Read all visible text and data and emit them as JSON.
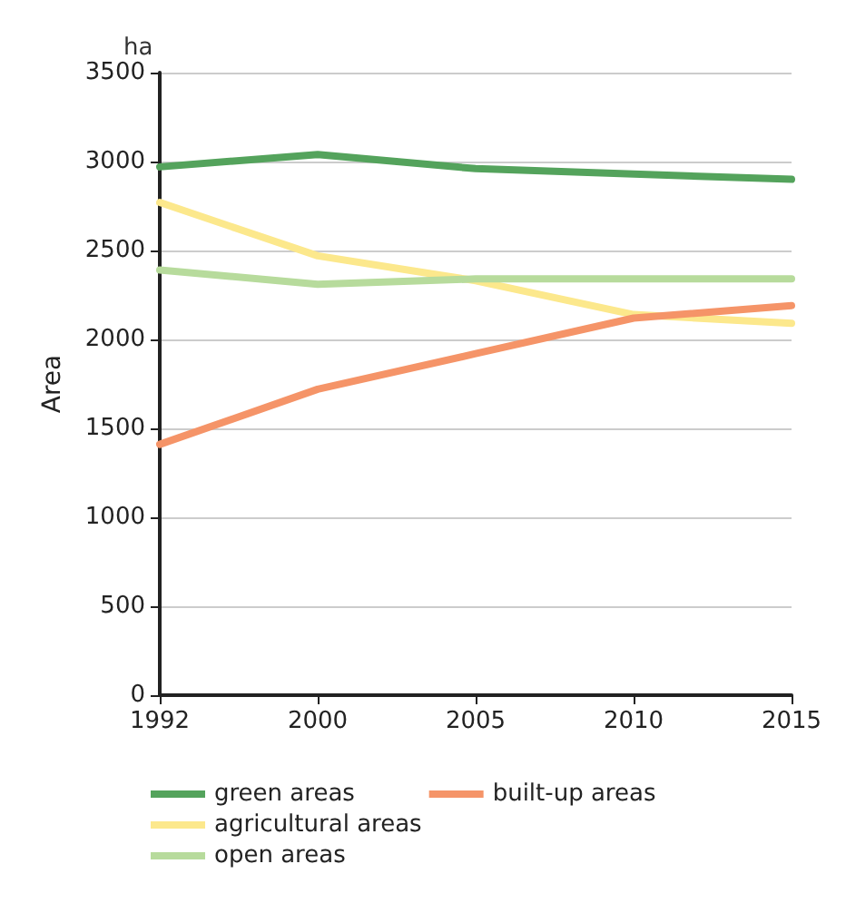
{
  "chart_data": {
    "type": "line",
    "ylabel": "Area",
    "annotations": [
      "ha"
    ],
    "categories": [
      "1992",
      "2000",
      "2005",
      "2010",
      "2015"
    ],
    "series": [
      {
        "name": "green areas",
        "color": "#54a35c",
        "values": [
          2970,
          3040,
          2960,
          2930,
          2900
        ]
      },
      {
        "name": "agricultural areas",
        "color": "#fce88c",
        "values": [
          2770,
          2470,
          2330,
          2140,
          2090
        ]
      },
      {
        "name": "open areas",
        "color": "#b7db9c",
        "values": [
          2390,
          2310,
          2340,
          2340,
          2340
        ]
      },
      {
        "name": "built-up areas",
        "color": "#f59468",
        "values": [
          1410,
          1720,
          1920,
          2120,
          2190
        ]
      }
    ],
    "ylim": [
      0,
      3500
    ],
    "yticks": [
      0,
      500,
      1000,
      1500,
      2000,
      2500,
      3000,
      3500
    ],
    "grid": "y",
    "legend": "bottom",
    "marker": "none",
    "line_style": "solid"
  }
}
